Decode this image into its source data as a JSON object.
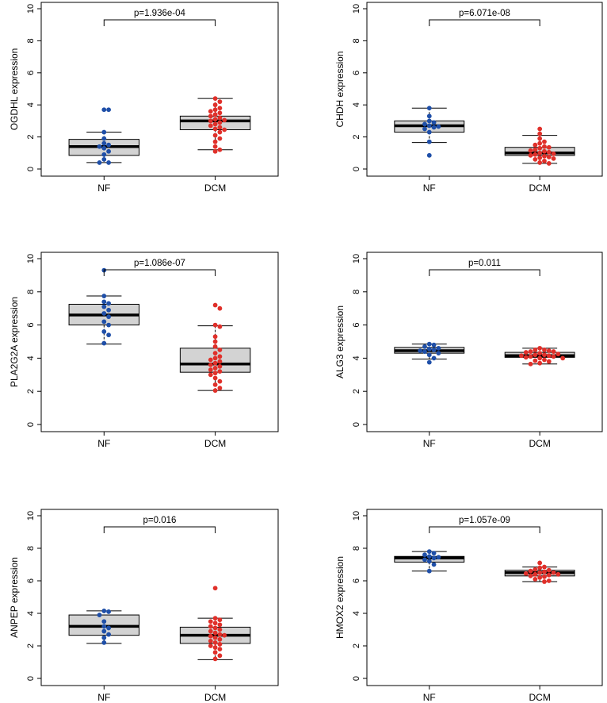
{
  "figure": {
    "colors": {
      "nf": "#1f4fa8",
      "dcm": "#e0302a",
      "box_fill": "#d3d3d3"
    }
  },
  "chart_data": [
    {
      "type": "boxplot",
      "ylabel": "OGDHL expression",
      "categories": [
        "NF",
        "DCM"
      ],
      "ylim": [
        0,
        10
      ],
      "yticks": [
        "0",
        "2",
        "4",
        "6",
        "8",
        "10"
      ],
      "pvalue": "p=1.936e-04",
      "boxes": [
        {
          "group": "NF",
          "whisker_low": 0.4,
          "q1": 0.85,
          "median": 1.4,
          "q3": 1.85,
          "whisker_high": 2.3
        },
        {
          "group": "DCM",
          "whisker_low": 1.2,
          "q1": 2.45,
          "median": 3.0,
          "q3": 3.3,
          "whisker_high": 4.4
        }
      ],
      "points": {
        "NF": [
          3.7,
          3.7,
          2.3,
          1.9,
          1.6,
          1.5,
          1.4,
          1.3,
          1.1,
          0.9,
          0.6,
          0.4,
          0.4
        ],
        "DCM": [
          4.4,
          4.2,
          4.0,
          3.8,
          3.7,
          3.6,
          3.5,
          3.4,
          3.3,
          3.2,
          3.1,
          3.05,
          3.0,
          2.9,
          2.8,
          2.7,
          2.6,
          2.5,
          2.45,
          2.3,
          2.1,
          1.9,
          1.7,
          1.4,
          1.2,
          1.1
        ]
      }
    },
    {
      "type": "boxplot",
      "ylabel": "CHDH expression",
      "categories": [
        "NF",
        "DCM"
      ],
      "ylim": [
        0,
        10
      ],
      "yticks": [
        "0",
        "2",
        "4",
        "6",
        "8",
        "10"
      ],
      "pvalue": "p=6.071e-08",
      "boxes": [
        {
          "group": "NF",
          "whisker_low": 1.65,
          "q1": 2.3,
          "median": 2.7,
          "q3": 3.0,
          "whisker_high": 3.8
        },
        {
          "group": "DCM",
          "whisker_low": 0.35,
          "q1": 0.85,
          "median": 1.0,
          "q3": 1.35,
          "whisker_high": 2.1
        }
      ],
      "points": {
        "NF": [
          3.8,
          3.3,
          3.0,
          2.9,
          2.8,
          2.7,
          2.65,
          2.6,
          2.5,
          2.3,
          1.7,
          0.85
        ],
        "DCM": [
          2.5,
          2.2,
          1.9,
          1.7,
          1.6,
          1.5,
          1.4,
          1.35,
          1.3,
          1.2,
          1.15,
          1.1,
          1.05,
          1.0,
          0.95,
          0.9,
          0.85,
          0.8,
          0.75,
          0.7,
          0.65,
          0.6,
          0.5,
          0.4,
          0.35
        ]
      }
    },
    {
      "type": "boxplot",
      "ylabel": "PLA2G2A expression",
      "categories": [
        "NF",
        "DCM"
      ],
      "ylim": [
        0,
        10
      ],
      "yticks": [
        "0",
        "2",
        "4",
        "6",
        "8",
        "10"
      ],
      "pvalue": "p=1.086e-07",
      "boxes": [
        {
          "group": "NF",
          "whisker_low": 4.85,
          "q1": 6.0,
          "median": 6.6,
          "q3": 7.25,
          "whisker_high": 7.75
        },
        {
          "group": "DCM",
          "whisker_low": 2.05,
          "q1": 3.15,
          "median": 3.65,
          "q3": 4.6,
          "whisker_high": 5.95
        }
      ],
      "points": {
        "NF": [
          9.3,
          7.75,
          7.4,
          7.3,
          7.1,
          6.9,
          6.7,
          6.5,
          6.2,
          6.0,
          5.6,
          5.4,
          4.9
        ],
        "DCM": [
          7.2,
          7.0,
          6.0,
          5.9,
          5.3,
          5.0,
          4.7,
          4.5,
          4.3,
          4.1,
          4.0,
          3.9,
          3.8,
          3.7,
          3.6,
          3.5,
          3.4,
          3.3,
          3.2,
          3.1,
          3.0,
          2.8,
          2.6,
          2.4,
          2.2,
          2.05
        ]
      }
    },
    {
      "type": "boxplot",
      "ylabel": "ALG3 expression",
      "categories": [
        "NF",
        "DCM"
      ],
      "ylim": [
        0,
        10
      ],
      "yticks": [
        "0",
        "2",
        "4",
        "6",
        "8",
        "10"
      ],
      "pvalue": "p=0.011",
      "boxes": [
        {
          "group": "NF",
          "whisker_low": 3.95,
          "q1": 4.3,
          "median": 4.45,
          "q3": 4.65,
          "whisker_high": 4.85
        },
        {
          "group": "DCM",
          "whisker_low": 3.65,
          "q1": 4.05,
          "median": 4.15,
          "q3": 4.35,
          "whisker_high": 4.6
        }
      ],
      "points": {
        "NF": [
          4.85,
          4.8,
          4.7,
          4.6,
          4.55,
          4.5,
          4.45,
          4.4,
          4.3,
          4.2,
          4.0,
          3.75
        ],
        "DCM": [
          4.6,
          4.5,
          4.5,
          4.45,
          4.4,
          4.4,
          4.35,
          4.3,
          4.25,
          4.2,
          4.2,
          4.15,
          4.15,
          4.1,
          4.1,
          4.05,
          4.0,
          4.0,
          3.9,
          3.85,
          3.8,
          3.7,
          3.65
        ]
      }
    },
    {
      "type": "boxplot",
      "ylabel": "ANPEP expression",
      "categories": [
        "NF",
        "DCM"
      ],
      "ylim": [
        0,
        10
      ],
      "yticks": [
        "0",
        "2",
        "4",
        "6",
        "8",
        "10"
      ],
      "pvalue": "p=0.016",
      "boxes": [
        {
          "group": "NF",
          "whisker_low": 2.15,
          "q1": 2.65,
          "median": 3.2,
          "q3": 3.9,
          "whisker_high": 4.15
        },
        {
          "group": "DCM",
          "whisker_low": 1.15,
          "q1": 2.15,
          "median": 2.65,
          "q3": 3.15,
          "whisker_high": 3.7
        }
      ],
      "points": {
        "NF": [
          4.15,
          4.1,
          3.9,
          3.5,
          3.2,
          3.1,
          2.9,
          2.7,
          2.5,
          2.2
        ],
        "DCM": [
          5.55,
          3.7,
          3.6,
          3.5,
          3.4,
          3.3,
          3.2,
          3.1,
          3.0,
          2.9,
          2.8,
          2.7,
          2.65,
          2.6,
          2.5,
          2.4,
          2.3,
          2.2,
          2.1,
          2.0,
          1.9,
          1.8,
          1.6,
          1.4,
          1.2
        ]
      }
    },
    {
      "type": "boxplot",
      "ylabel": "HMOX2 expression",
      "categories": [
        "NF",
        "DCM"
      ],
      "ylim": [
        0,
        10
      ],
      "yticks": [
        "0",
        "2",
        "4",
        "6",
        "8",
        "10"
      ],
      "pvalue": "p=1.057e-09",
      "boxes": [
        {
          "group": "NF",
          "whisker_low": 6.6,
          "q1": 7.15,
          "median": 7.4,
          "q3": 7.5,
          "whisker_high": 7.8
        },
        {
          "group": "DCM",
          "whisker_low": 5.95,
          "q1": 6.3,
          "median": 6.5,
          "q3": 6.65,
          "whisker_high": 6.85
        }
      ],
      "points": {
        "NF": [
          7.8,
          7.7,
          7.6,
          7.5,
          7.45,
          7.4,
          7.3,
          7.2,
          7.0,
          6.6
        ],
        "DCM": [
          7.1,
          6.85,
          6.8,
          6.7,
          6.65,
          6.6,
          6.55,
          6.5,
          6.5,
          6.45,
          6.4,
          6.4,
          6.35,
          6.3,
          6.25,
          6.2,
          6.1,
          6.0,
          5.95
        ]
      }
    }
  ]
}
